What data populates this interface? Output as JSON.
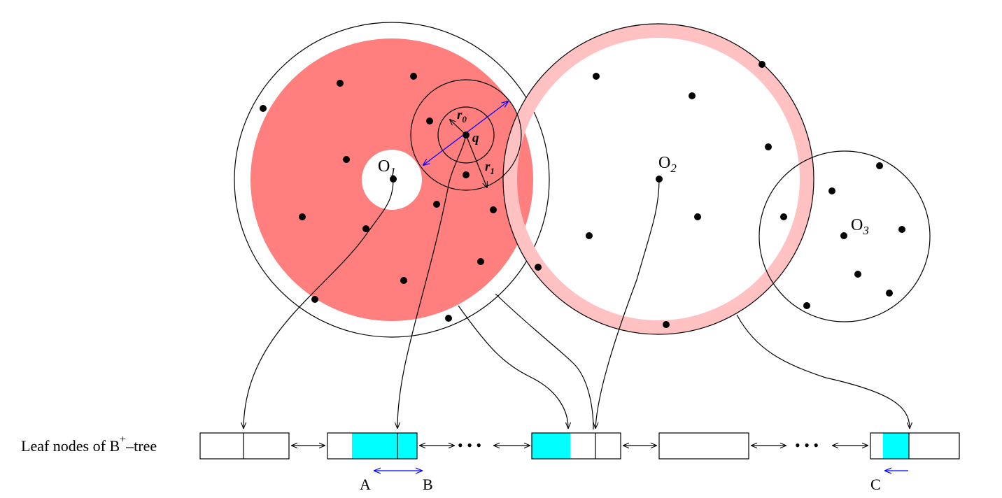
{
  "circles": {
    "o1": {
      "label": "O",
      "subscript": "1"
    },
    "o2": {
      "label": "O",
      "subscript": "2"
    },
    "o3": {
      "label": "O",
      "subscript": "3"
    }
  },
  "query": {
    "point_label": "q",
    "r0_label": "r",
    "r0_subscript": "0",
    "r1_label": "r",
    "r1_subscript": "1"
  },
  "btree": {
    "label_prefix": "Leaf nodes of B",
    "label_sup": "+",
    "label_suffix": "–tree",
    "ellipsis": "• • •"
  },
  "markers": {
    "a": "A",
    "b": "B",
    "c": "C"
  },
  "colors": {
    "annulus_o1": "#ff7f7f",
    "ring_o2": "#ffc1c1",
    "leaf_highlight": "#00ffff",
    "arrow_blue": "#0000ff"
  }
}
